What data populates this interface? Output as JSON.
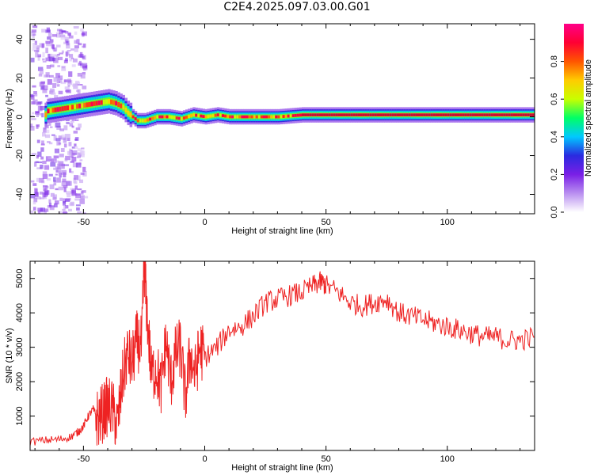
{
  "title": "C2E4.2025.097.03.00.G01",
  "chart_data": [
    {
      "type": "heatmap",
      "xlabel": "Height of straight line (km)",
      "ylabel": "Frequency (Hz)",
      "xlim": [
        -72,
        136
      ],
      "ylim": [
        -50,
        48
      ],
      "x_ticks": [
        -50,
        0,
        50,
        100
      ],
      "y_ticks": [
        -40,
        -20,
        0,
        20,
        40
      ],
      "colorbar": {
        "label": "Normalized spectral amplitude",
        "range": [
          0.0,
          1.0
        ],
        "ticks": [
          0.0,
          0.2,
          0.4,
          0.6,
          0.8
        ],
        "colors": [
          "#ffffff",
          "#b98ff0",
          "#7a1fe6",
          "#2a2ae0",
          "#00c8ff",
          "#00ff66",
          "#c8ff00",
          "#ffcc00",
          "#ff5500",
          "#ff0033",
          "#ff0088"
        ]
      },
      "ridge_center_hz": {
        "x": [
          -65,
          -60,
          -55,
          -50,
          -45,
          -40,
          -37,
          -34,
          -32,
          -30,
          -28,
          -25,
          -20,
          -15,
          -10,
          -5,
          0,
          5,
          10,
          20,
          30,
          40,
          50,
          60,
          80,
          100,
          120,
          135
        ],
        "y": [
          3,
          4,
          5,
          6,
          7,
          8,
          7,
          5,
          2,
          0,
          -2,
          -2,
          0,
          0,
          -1,
          1,
          0,
          1,
          0,
          0,
          0,
          1,
          1,
          1,
          1,
          1,
          1,
          1
        ]
      }
    },
    {
      "type": "line",
      "xlabel": "Height of straight line (km)",
      "ylabel": "SNR (10 * v/v)",
      "xlim": [
        -72,
        136
      ],
      "ylim": [
        0,
        5500
      ],
      "x_ticks": [
        -50,
        0,
        50,
        100
      ],
      "y_ticks": [
        1000,
        2000,
        3000,
        4000,
        5000
      ],
      "color": "#ee2222",
      "x": [
        -72,
        -65,
        -60,
        -55,
        -52,
        -50,
        -48,
        -46,
        -44,
        -42,
        -40,
        -38,
        -36,
        -34,
        -32,
        -30,
        -28,
        -26,
        -25,
        -24,
        -22,
        -20,
        -18,
        -16,
        -14,
        -12,
        -10,
        -8,
        -6,
        -4,
        -2,
        0,
        5,
        10,
        15,
        20,
        25,
        30,
        35,
        40,
        45,
        48,
        50,
        55,
        60,
        65,
        70,
        75,
        80,
        85,
        90,
        95,
        100,
        105,
        110,
        115,
        120,
        125,
        130,
        136
      ],
      "y": [
        250,
        300,
        320,
        400,
        550,
        700,
        1000,
        1200,
        900,
        1100,
        1300,
        1200,
        700,
        2000,
        2800,
        2500,
        3200,
        3000,
        5500,
        4200,
        2200,
        2400,
        1800,
        3200,
        2000,
        2800,
        3000,
        1500,
        2800,
        2200,
        3000,
        2700,
        3000,
        3500,
        3600,
        3900,
        4300,
        4400,
        4500,
        4600,
        4800,
        4900,
        4800,
        4600,
        4300,
        4200,
        4300,
        4400,
        4000,
        3900,
        3800,
        3700,
        3600,
        3500,
        3400,
        3300,
        3300,
        3200,
        3200,
        3300
      ]
    }
  ]
}
